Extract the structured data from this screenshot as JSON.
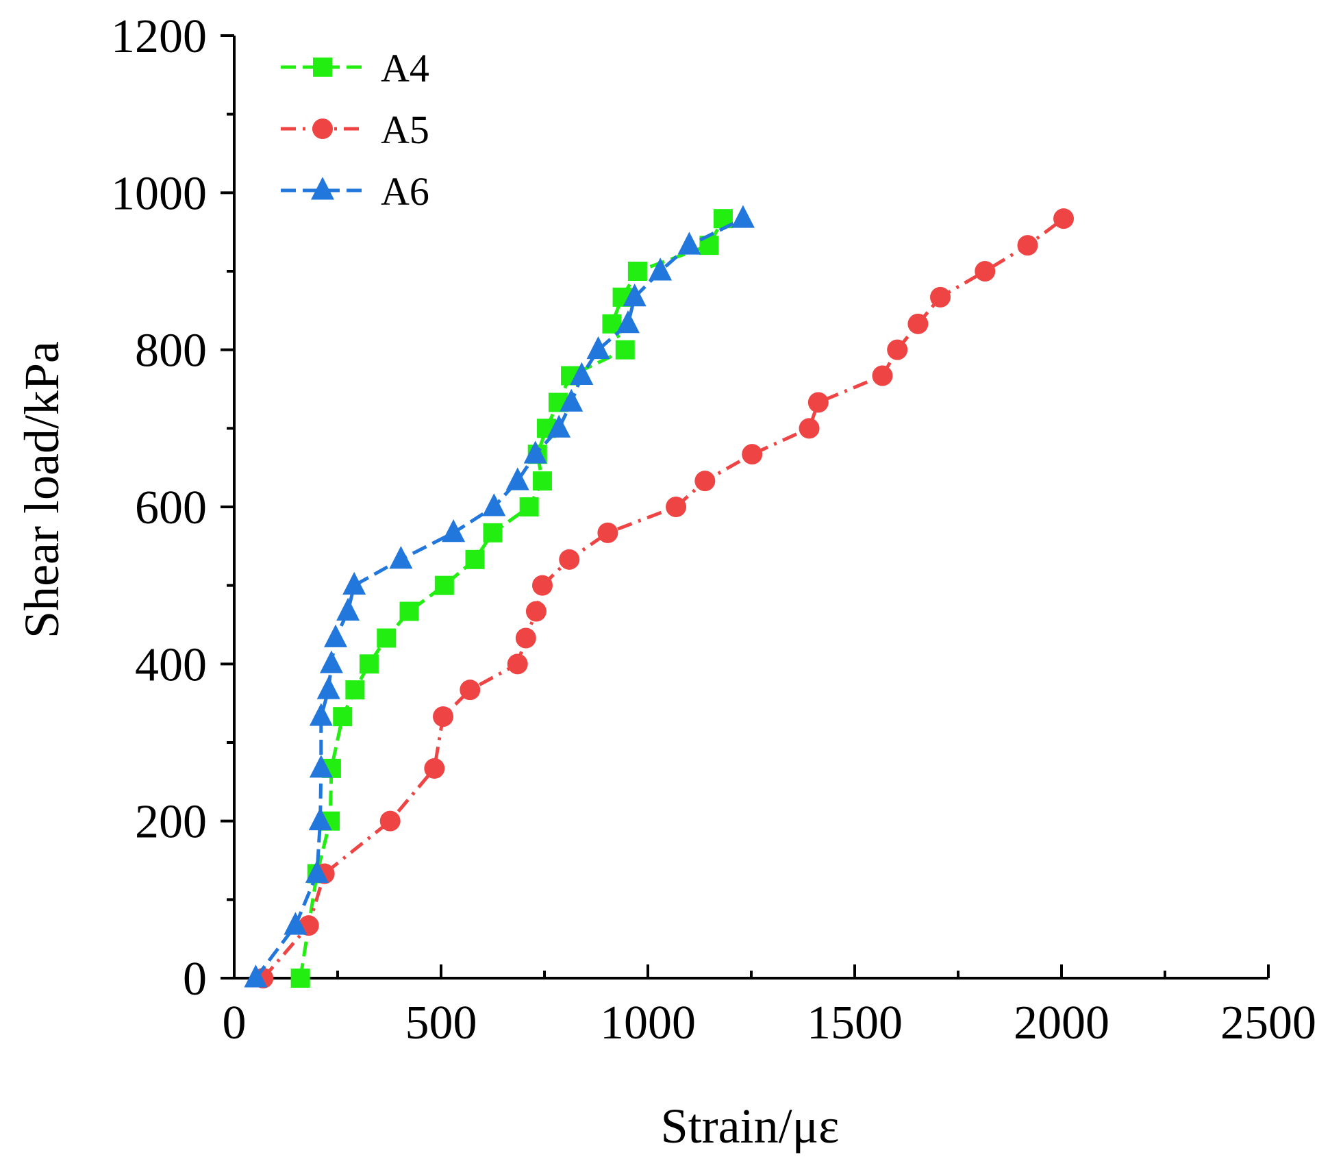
{
  "chart_data": {
    "type": "line",
    "title": "",
    "xlabel": "Strain/με",
    "ylabel": "Shear load/kPa",
    "xlim": [
      0,
      2500
    ],
    "ylim": [
      0,
      1200
    ],
    "xticks": [
      0,
      500,
      1000,
      1500,
      2000,
      2500
    ],
    "yticks": [
      0,
      200,
      400,
      600,
      800,
      1000,
      1200
    ],
    "xtick_labels": [
      "0",
      "500",
      "1000",
      "1500",
      "2000",
      "2500"
    ],
    "ytick_labels": [
      "0",
      "200",
      "400",
      "600",
      "800",
      "1000",
      "1200"
    ],
    "grid": false,
    "legend_position": "top-left",
    "series": [
      {
        "name": "A4",
        "color": "#22ee11",
        "marker": "square",
        "dash": "dashed",
        "points": [
          [
            160,
            0
          ],
          [
            200,
            133
          ],
          [
            232,
            200
          ],
          [
            235,
            267
          ],
          [
            262,
            333
          ],
          [
            292,
            367
          ],
          [
            326,
            400
          ],
          [
            368,
            433
          ],
          [
            423,
            467
          ],
          [
            508,
            500
          ],
          [
            582,
            533
          ],
          [
            625,
            567
          ],
          [
            713,
            600
          ],
          [
            745,
            633
          ],
          [
            733,
            667
          ],
          [
            755,
            700
          ],
          [
            783,
            733
          ],
          [
            813,
            767
          ],
          [
            945,
            800
          ],
          [
            913,
            833
          ],
          [
            938,
            867
          ],
          [
            975,
            900
          ],
          [
            1148,
            933
          ],
          [
            1182,
            967
          ]
        ]
      },
      {
        "name": "A5",
        "color": "#ee4444",
        "marker": "circle",
        "dash": "dashdot",
        "points": [
          [
            70,
            0
          ],
          [
            180,
            67
          ],
          [
            218,
            133
          ],
          [
            377,
            200
          ],
          [
            484,
            267
          ],
          [
            505,
            333
          ],
          [
            570,
            367
          ],
          [
            685,
            400
          ],
          [
            705,
            433
          ],
          [
            730,
            467
          ],
          [
            745,
            500
          ],
          [
            810,
            533
          ],
          [
            903,
            567
          ],
          [
            1068,
            600
          ],
          [
            1138,
            633
          ],
          [
            1252,
            667
          ],
          [
            1390,
            700
          ],
          [
            1412,
            733
          ],
          [
            1567,
            767
          ],
          [
            1603,
            800
          ],
          [
            1653,
            833
          ],
          [
            1707,
            867
          ],
          [
            1815,
            900
          ],
          [
            1918,
            933
          ],
          [
            2005,
            967
          ]
        ]
      },
      {
        "name": "A6",
        "color": "#2277dd",
        "marker": "triangle",
        "dash": "dashed",
        "points": [
          [
            52,
            0
          ],
          [
            148,
            67
          ],
          [
            200,
            133
          ],
          [
            208,
            200
          ],
          [
            210,
            267
          ],
          [
            210,
            333
          ],
          [
            228,
            367
          ],
          [
            235,
            400
          ],
          [
            245,
            433
          ],
          [
            275,
            467
          ],
          [
            290,
            500
          ],
          [
            403,
            533
          ],
          [
            530,
            567
          ],
          [
            628,
            600
          ],
          [
            685,
            633
          ],
          [
            728,
            667
          ],
          [
            785,
            700
          ],
          [
            815,
            733
          ],
          [
            840,
            767
          ],
          [
            880,
            800
          ],
          [
            952,
            833
          ],
          [
            968,
            867
          ],
          [
            1030,
            900
          ],
          [
            1100,
            933
          ],
          [
            1230,
            967
          ]
        ]
      }
    ]
  }
}
